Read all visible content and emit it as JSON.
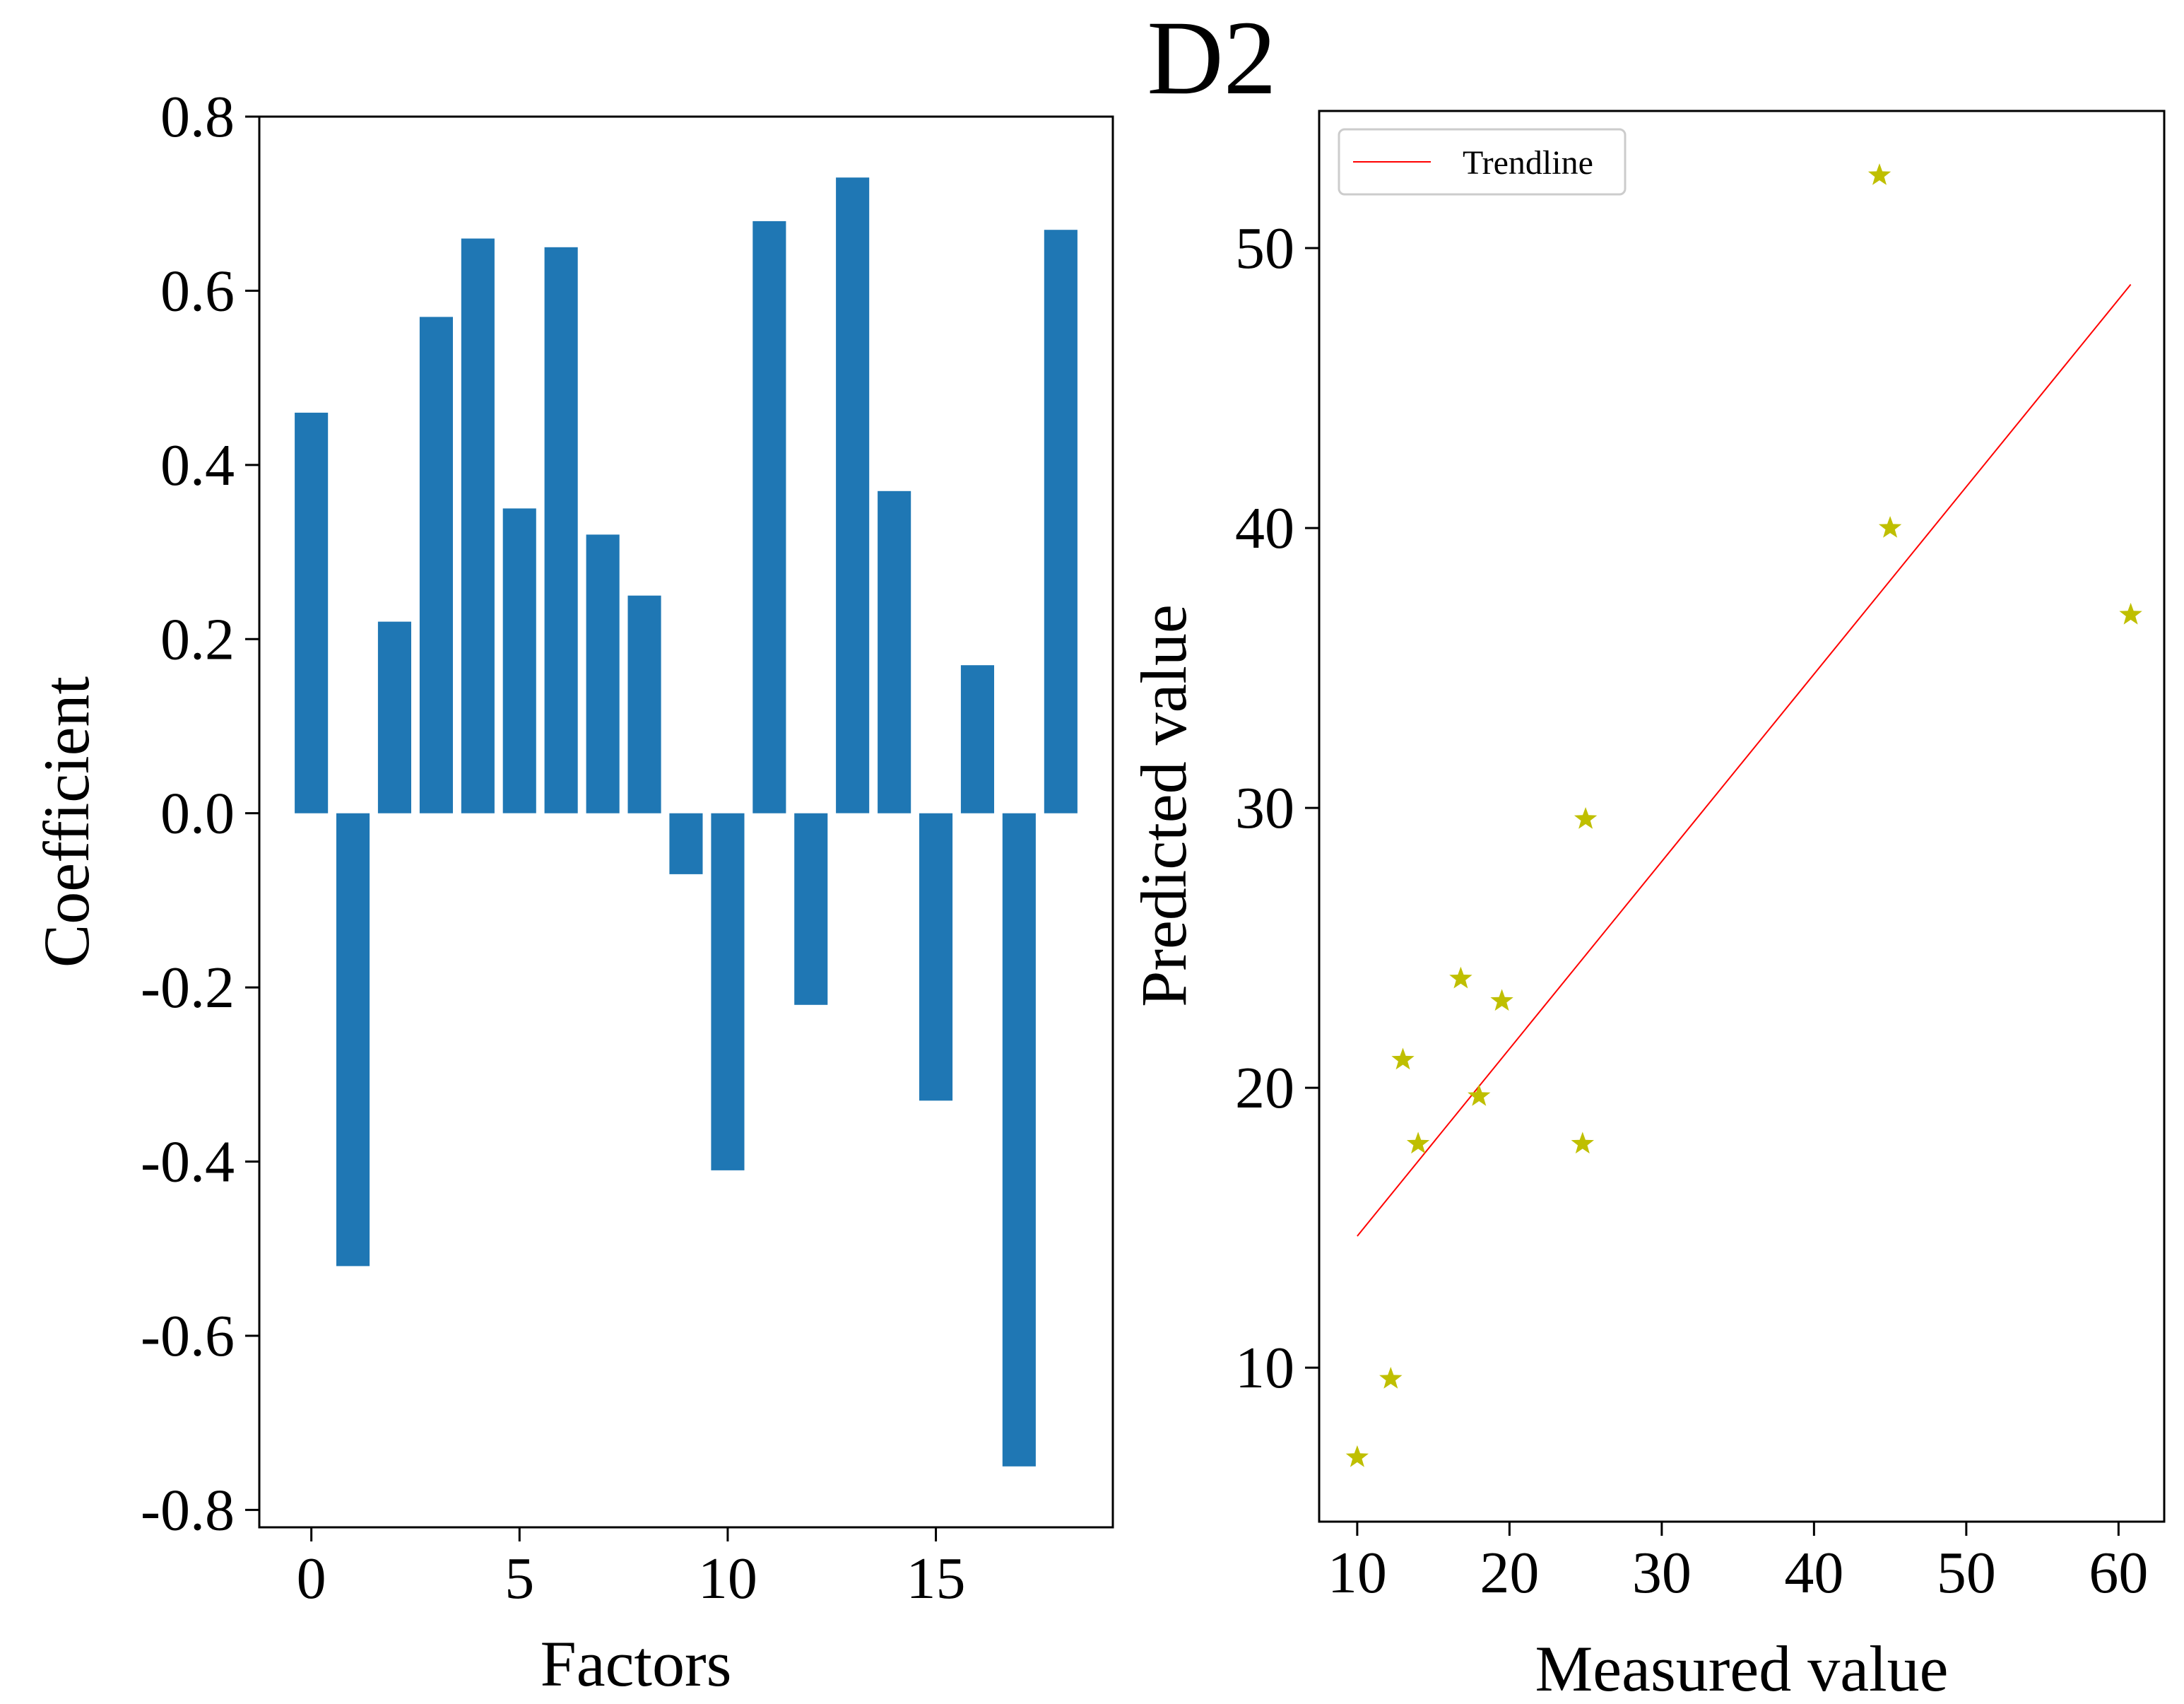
{
  "figure_title": "D2",
  "colors": {
    "bar": "#1f77b4",
    "marker": "#bfbf00",
    "trendline": "#ff0000",
    "axes": "#000000"
  },
  "chart_data": [
    {
      "type": "bar",
      "title": "",
      "xlabel": "Factors",
      "ylabel": "Coefficient",
      "categories": [
        0,
        1,
        2,
        3,
        4,
        5,
        6,
        7,
        8,
        9,
        10,
        11,
        12,
        13,
        14,
        15,
        16,
        17,
        18
      ],
      "values": [
        0.46,
        -0.52,
        0.22,
        0.57,
        0.66,
        0.35,
        0.65,
        0.32,
        0.25,
        -0.07,
        -0.41,
        0.68,
        -0.22,
        0.73,
        0.37,
        -0.33,
        0.17,
        -0.75,
        0.67
      ],
      "xlim": [
        -1.25,
        19.25
      ],
      "ylim": [
        -0.82,
        0.8
      ],
      "xticks": [
        0,
        5,
        10,
        15
      ],
      "xtick_labels": [
        "0",
        "5",
        "10",
        "15"
      ],
      "yticks": [
        0.8,
        0.6,
        0.4,
        0.2,
        0.0,
        -0.2,
        -0.4,
        -0.6,
        -0.8
      ],
      "ytick_labels": [
        "0.8",
        "0.6",
        "0.4",
        "0.2",
        "0.0",
        "-0.2",
        "-0.4",
        "-0.6",
        "-0.8"
      ],
      "grid": false
    },
    {
      "type": "scatter",
      "title": "",
      "xlabel": "Measured value",
      "ylabel": "Predicted value",
      "points": [
        {
          "x": 10.0,
          "y": 6.8
        },
        {
          "x": 12.2,
          "y": 9.6
        },
        {
          "x": 13.0,
          "y": 21.0
        },
        {
          "x": 14.0,
          "y": 18.0
        },
        {
          "x": 16.8,
          "y": 23.9
        },
        {
          "x": 18.0,
          "y": 19.7
        },
        {
          "x": 19.5,
          "y": 23.1
        },
        {
          "x": 24.8,
          "y": 18.0
        },
        {
          "x": 25.0,
          "y": 29.6
        },
        {
          "x": 44.3,
          "y": 52.6
        },
        {
          "x": 45.0,
          "y": 40.0
        },
        {
          "x": 60.8,
          "y": 36.9
        }
      ],
      "trendline": {
        "name": "Trendline",
        "x": [
          10.0,
          60.8
        ],
        "y": [
          14.7,
          48.7
        ]
      },
      "legend": {
        "label": "Trendline",
        "location": "upper-left"
      },
      "xlim": [
        7.5,
        63.0
      ],
      "ylim": [
        4.5,
        54.9
      ],
      "xticks": [
        10,
        20,
        30,
        40,
        50,
        60
      ],
      "xtick_labels": [
        "10",
        "20",
        "30",
        "40",
        "50",
        "60"
      ],
      "yticks": [
        10,
        20,
        30,
        40,
        50
      ],
      "ytick_labels": [
        "10",
        "20",
        "30",
        "40",
        "50"
      ],
      "grid": false
    }
  ]
}
